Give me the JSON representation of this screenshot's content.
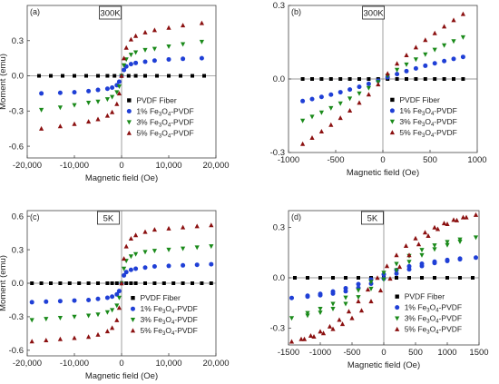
{
  "chart_data": [
    {
      "type": "scatter",
      "panel_label": "(a)",
      "temperature": "300K",
      "xlabel": "Magnetic field (Oe)",
      "ylabel": "Moment (emu)",
      "xlim": [
        -20000,
        20000
      ],
      "ylim": [
        -0.7,
        0.6
      ],
      "xticks": [
        -20000,
        -10000,
        0,
        10000,
        20000
      ],
      "xtick_labels": [
        "-20,000",
        "-10,000",
        "0",
        "10,000",
        "20,000"
      ],
      "yticks": [
        -0.6,
        -0.3,
        0.0,
        0.3
      ],
      "ytick_labels": [
        "-0.6",
        "-0.3",
        "0.0",
        "0.3"
      ],
      "legend_position": "lower-right",
      "series": [
        {
          "name": "PVDF Fiber",
          "formula": [
            "PVDF Fiber"
          ],
          "marker": "square",
          "color": "#000000",
          "x": [
            -17500,
            -15000,
            -12500,
            -10000,
            -7500,
            -5000,
            -3000,
            -1500,
            0,
            1500,
            3000,
            5000,
            7500,
            10000,
            12500,
            15000,
            17500
          ],
          "y": [
            0,
            0,
            0,
            0,
            0,
            0,
            0,
            0,
            0,
            0,
            0,
            0,
            0,
            0,
            0,
            0,
            0
          ]
        },
        {
          "name": "1% Fe3O4-PVDF",
          "formula": [
            "1% Fe",
            "3",
            "O",
            "4",
            "-PVDF"
          ],
          "marker": "circle",
          "color": "#1f3fd6",
          "x": [
            -17000,
            -13000,
            -10000,
            -7000,
            -5000,
            -3000,
            -2000,
            -1000,
            -500,
            0,
            500,
            1000,
            2000,
            3000,
            5000,
            7000,
            10000,
            13000,
            17000
          ],
          "y": [
            -0.15,
            -0.145,
            -0.14,
            -0.13,
            -0.12,
            -0.11,
            -0.1,
            -0.08,
            -0.05,
            0,
            0.05,
            0.08,
            0.1,
            0.11,
            0.12,
            0.13,
            0.14,
            0.145,
            0.15
          ]
        },
        {
          "name": "3% Fe3O4-PVDF",
          "formula": [
            "3% Fe",
            "3",
            "O",
            "4",
            "-PVDF"
          ],
          "marker": "triangle-down",
          "color": "#1a8a1a",
          "x": [
            -17000,
            -13000,
            -10000,
            -7000,
            -5000,
            -3000,
            -2000,
            -1000,
            -500,
            0,
            500,
            1000,
            2000,
            3000,
            5000,
            7000,
            10000,
            13000,
            17000
          ],
          "y": [
            -0.29,
            -0.27,
            -0.25,
            -0.23,
            -0.22,
            -0.2,
            -0.18,
            -0.14,
            -0.09,
            0,
            0.09,
            0.14,
            0.18,
            0.2,
            0.22,
            0.23,
            0.25,
            0.27,
            0.29
          ]
        },
        {
          "name": "5% Fe3O4-PVDF",
          "formula": [
            "5% Fe",
            "3",
            "O",
            "4",
            "-PVDF"
          ],
          "marker": "triangle-up",
          "color": "#8b1010",
          "x": [
            -17000,
            -13000,
            -10000,
            -7000,
            -5000,
            -3000,
            -2000,
            -1000,
            -500,
            0,
            500,
            1000,
            2000,
            3000,
            5000,
            7000,
            10000,
            13000,
            17000
          ],
          "y": [
            -0.45,
            -0.43,
            -0.41,
            -0.39,
            -0.37,
            -0.34,
            -0.31,
            -0.24,
            -0.15,
            0,
            0.15,
            0.24,
            0.31,
            0.34,
            0.37,
            0.39,
            0.41,
            0.43,
            0.45
          ]
        }
      ]
    },
    {
      "type": "scatter",
      "panel_label": "(b)",
      "temperature": "300K",
      "xlabel": "Magnetic field (Oe)",
      "ylabel": "",
      "xlim": [
        -1000,
        1000
      ],
      "ylim": [
        -0.3,
        0.3
      ],
      "xticks": [
        -1000,
        -500,
        0,
        500,
        1000
      ],
      "xtick_labels": [
        "-1000",
        "-500",
        "0",
        "500",
        "1000"
      ],
      "yticks": [
        -0.3,
        0.0,
        0.3
      ],
      "ytick_labels": [
        "-0.3",
        "0.0",
        "0.3"
      ],
      "legend_position": "lower-right",
      "series": [
        {
          "name": "PVDF Fiber",
          "formula": [
            "PVDF Fiber"
          ],
          "marker": "square",
          "color": "#000000",
          "x": [
            -850,
            -750,
            -650,
            -550,
            -450,
            -350,
            -250,
            -150,
            -50,
            50,
            150,
            250,
            350,
            450,
            550,
            650,
            750,
            850
          ],
          "y": [
            0,
            0,
            0,
            0,
            0,
            0,
            0,
            0,
            0,
            0,
            0,
            0,
            0,
            0,
            0,
            0,
            0,
            0
          ]
        },
        {
          "name": "1% Fe3O4-PVDF",
          "formula": [
            "1% Fe",
            "3",
            "O",
            "4",
            "-PVDF"
          ],
          "marker": "circle",
          "color": "#1f3fd6",
          "x": [
            -850,
            -750,
            -650,
            -550,
            -450,
            -350,
            -250,
            -150,
            -50,
            50,
            150,
            250,
            350,
            450,
            550,
            650,
            750,
            850
          ],
          "y": [
            -0.09,
            -0.082,
            -0.073,
            -0.064,
            -0.054,
            -0.043,
            -0.032,
            -0.02,
            -0.007,
            0.007,
            0.02,
            0.032,
            0.043,
            0.054,
            0.064,
            0.073,
            0.082,
            0.09
          ]
        },
        {
          "name": "3% Fe3O4-PVDF",
          "formula": [
            "3% Fe",
            "3",
            "O",
            "4",
            "-PVDF"
          ],
          "marker": "triangle-down",
          "color": "#1a8a1a",
          "x": [
            -850,
            -750,
            -650,
            -550,
            -450,
            -350,
            -250,
            -150,
            -50,
            50,
            150,
            250,
            350,
            450,
            550,
            650,
            750,
            850
          ],
          "y": [
            -0.17,
            -0.154,
            -0.137,
            -0.119,
            -0.1,
            -0.08,
            -0.059,
            -0.037,
            -0.013,
            0.013,
            0.037,
            0.059,
            0.08,
            0.1,
            0.119,
            0.137,
            0.154,
            0.17
          ]
        },
        {
          "name": "5% Fe3O4-PVDF",
          "formula": [
            "5% Fe",
            "3",
            "O",
            "4",
            "-PVDF"
          ],
          "marker": "triangle-up",
          "color": "#8b1010",
          "x": [
            -850,
            -750,
            -650,
            -550,
            -450,
            -350,
            -250,
            -150,
            -50,
            50,
            150,
            250,
            350,
            450,
            550,
            650,
            750,
            850
          ],
          "y": [
            -0.265,
            -0.24,
            -0.214,
            -0.187,
            -0.159,
            -0.129,
            -0.097,
            -0.063,
            -0.022,
            0.022,
            0.063,
            0.097,
            0.129,
            0.159,
            0.187,
            0.214,
            0.24,
            0.265
          ]
        }
      ]
    },
    {
      "type": "scatter",
      "panel_label": "(c)",
      "temperature": "5K",
      "xlabel": "Magnetic field (Oe)",
      "ylabel": "Moment (emu)",
      "xlim": [
        -20000,
        20000
      ],
      "ylim": [
        -0.65,
        0.65
      ],
      "xticks": [
        -20000,
        -10000,
        0,
        10000,
        20000
      ],
      "xtick_labels": [
        "-20,000",
        "-10,000",
        "0",
        "10,000",
        "20,000"
      ],
      "yticks": [
        -0.6,
        -0.3,
        0.0,
        0.3,
        0.6
      ],
      "ytick_labels": [
        "-0.6",
        "-0.3",
        "0.0",
        "0.3",
        "0.6"
      ],
      "legend_position": "lower-right",
      "series": [
        {
          "name": "PVDF Fiber",
          "formula": [
            "PVDF Fiber"
          ],
          "marker": "square",
          "color": "#000000",
          "x": [
            -19000,
            -17000,
            -15000,
            -13000,
            -11000,
            -9000,
            -7000,
            -5000,
            -3000,
            -2000,
            -1000,
            0,
            1000,
            2000,
            3000,
            5000,
            7000,
            9000,
            11000,
            13000,
            15000,
            17000,
            19000
          ],
          "y": [
            0,
            0,
            0,
            0,
            0,
            0,
            0,
            0,
            0,
            0,
            0,
            0,
            0,
            0,
            0,
            0,
            0,
            0,
            0,
            0,
            0,
            0,
            0
          ]
        },
        {
          "name": "1% Fe3O4-PVDF",
          "formula": [
            "1% Fe",
            "3",
            "O",
            "4",
            "-PVDF"
          ],
          "marker": "circle",
          "color": "#1f3fd6",
          "x": [
            -19000,
            -16000,
            -13000,
            -10000,
            -7000,
            -5000,
            -3000,
            -2000,
            -1000,
            -500,
            0,
            500,
            1000,
            2000,
            3000,
            5000,
            7000,
            10000,
            13000,
            16000,
            19000
          ],
          "y": [
            -0.17,
            -0.165,
            -0.16,
            -0.155,
            -0.15,
            -0.14,
            -0.13,
            -0.12,
            -0.1,
            -0.07,
            0,
            0.07,
            0.1,
            0.12,
            0.13,
            0.14,
            0.15,
            0.155,
            0.16,
            0.165,
            0.17
          ]
        },
        {
          "name": "3% Fe3O4-PVDF",
          "formula": [
            "3% Fe",
            "3",
            "O",
            "4",
            "-PVDF"
          ],
          "marker": "triangle-down",
          "color": "#1a8a1a",
          "x": [
            -19000,
            -16000,
            -13000,
            -10000,
            -7000,
            -5000,
            -3000,
            -2000,
            -1000,
            -500,
            0,
            500,
            1000,
            2000,
            3000,
            5000,
            7000,
            10000,
            13000,
            16000,
            19000
          ],
          "y": [
            -0.33,
            -0.32,
            -0.31,
            -0.3,
            -0.29,
            -0.28,
            -0.26,
            -0.24,
            -0.2,
            -0.13,
            0,
            0.13,
            0.2,
            0.24,
            0.26,
            0.28,
            0.29,
            0.3,
            0.31,
            0.32,
            0.33
          ]
        },
        {
          "name": "5% Fe3O4-PVDF",
          "formula": [
            "5% Fe",
            "3",
            "O",
            "4",
            "-PVDF"
          ],
          "marker": "triangle-up",
          "color": "#8b1010",
          "x": [
            -19000,
            -16000,
            -13000,
            -10000,
            -7000,
            -5000,
            -3000,
            -2000,
            -1000,
            -500,
            0,
            500,
            1000,
            2000,
            3000,
            5000,
            7000,
            10000,
            13000,
            16000,
            19000
          ],
          "y": [
            -0.52,
            -0.51,
            -0.5,
            -0.49,
            -0.48,
            -0.46,
            -0.43,
            -0.4,
            -0.33,
            -0.22,
            0,
            0.22,
            0.33,
            0.4,
            0.43,
            0.46,
            0.48,
            0.49,
            0.5,
            0.51,
            0.52
          ]
        }
      ]
    },
    {
      "type": "scatter",
      "panel_label": "(d)",
      "temperature": "5K",
      "xlabel": "Magnetic field (Oe)",
      "ylabel": "",
      "xlim": [
        -1500,
        1500
      ],
      "ylim": [
        -0.4,
        0.4
      ],
      "xticks": [
        -1500,
        -1000,
        -500,
        0,
        500,
        1000,
        1500
      ],
      "xtick_labels": [
        "-1500",
        "-1000",
        "-500",
        "0",
        "500",
        "1000",
        "1500"
      ],
      "yticks": [
        -0.3,
        0.0,
        0.3
      ],
      "ytick_labels": [
        "-0.3",
        "0.0",
        "0.3"
      ],
      "legend_position": "lower-right",
      "series": [
        {
          "name": "PVDF Fiber",
          "formula": [
            "PVDF Fiber"
          ],
          "marker": "square",
          "color": "#000000",
          "x": [
            -1400,
            -1200,
            -1000,
            -800,
            -600,
            -400,
            -200,
            0,
            200,
            400,
            600,
            800,
            1000,
            1200,
            1400
          ],
          "y": [
            0,
            0,
            0,
            0,
            0,
            0,
            0,
            0,
            0,
            0,
            0,
            0,
            0,
            0,
            0
          ]
        },
        {
          "name": "1% Fe3O4-PVDF",
          "formula": [
            "1% Fe",
            "3",
            "O",
            "4",
            "-PVDF"
          ],
          "marker": "circle",
          "color": "#1f3fd6",
          "x": [
            -1450,
            -1200,
            -1000,
            -800,
            -600,
            -400,
            -200,
            0,
            200,
            400,
            600,
            800,
            1000,
            1200,
            1450,
            1200,
            1000,
            800,
            600,
            400,
            200,
            0,
            -200,
            -400,
            -600,
            -800,
            -1000,
            -1200
          ],
          "y": [
            -0.12,
            -0.112,
            -0.104,
            -0.094,
            -0.08,
            -0.06,
            -0.035,
            -0.005,
            0.025,
            0.05,
            0.07,
            0.088,
            0.1,
            0.11,
            0.12,
            0.114,
            0.106,
            0.096,
            0.084,
            0.068,
            0.046,
            0.02,
            -0.01,
            -0.038,
            -0.062,
            -0.082,
            -0.096,
            -0.107
          ]
        },
        {
          "name": "3% Fe3O4-PVDF",
          "formula": [
            "3% Fe",
            "3",
            "O",
            "4",
            "-PVDF"
          ],
          "marker": "triangle-down",
          "color": "#1a8a1a",
          "x": [
            -1450,
            -1200,
            -1000,
            -800,
            -600,
            -400,
            -200,
            0,
            200,
            400,
            600,
            800,
            1000,
            1200,
            1450,
            1200,
            1000,
            800,
            600,
            400,
            200,
            0,
            -200,
            -400,
            -600,
            -800,
            -1000,
            -1200
          ],
          "y": [
            -0.24,
            -0.225,
            -0.207,
            -0.185,
            -0.155,
            -0.115,
            -0.065,
            -0.01,
            0.045,
            0.095,
            0.135,
            0.17,
            0.195,
            0.215,
            0.24,
            0.228,
            0.213,
            0.193,
            0.166,
            0.13,
            0.083,
            0.03,
            -0.025,
            -0.075,
            -0.118,
            -0.155,
            -0.185,
            -0.21
          ]
        },
        {
          "name": "5% Fe3O4-PVDF",
          "formula": [
            "5% Fe",
            "3",
            "O",
            "4",
            "-PVDF"
          ],
          "marker": "triangle-up",
          "color": "#8b1010",
          "x": [
            -1450,
            -1300,
            -1150,
            -1000,
            -850,
            -700,
            -550,
            -400,
            -250,
            -100,
            50,
            200,
            350,
            500,
            650,
            800,
            950,
            1100,
            1250,
            1450,
            1300,
            1150,
            1000,
            850,
            700,
            550,
            400,
            250,
            100,
            -50,
            -200,
            -350,
            -500,
            -650,
            -800,
            -950,
            -1100,
            -1250
          ],
          "y": [
            -0.38,
            -0.365,
            -0.345,
            -0.32,
            -0.29,
            -0.25,
            -0.2,
            -0.14,
            -0.07,
            0.0,
            0.07,
            0.135,
            0.19,
            0.235,
            0.27,
            0.3,
            0.325,
            0.345,
            0.36,
            0.375,
            0.36,
            0.342,
            0.32,
            0.29,
            0.25,
            0.2,
            0.135,
            0.065,
            -0.005,
            -0.075,
            -0.14,
            -0.195,
            -0.24,
            -0.275,
            -0.305,
            -0.33,
            -0.35,
            -0.365
          ]
        }
      ]
    }
  ]
}
